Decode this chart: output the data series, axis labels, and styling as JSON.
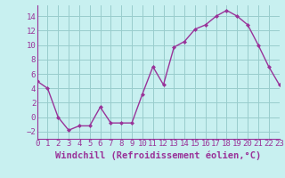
{
  "x": [
    0,
    1,
    2,
    3,
    4,
    5,
    6,
    7,
    8,
    9,
    10,
    11,
    12,
    13,
    14,
    15,
    16,
    17,
    18,
    19,
    20,
    21,
    22,
    23
  ],
  "y": [
    5,
    4,
    0,
    -1.8,
    -1.2,
    -1.2,
    1.4,
    -0.8,
    -0.8,
    -0.8,
    3.2,
    7,
    4.5,
    9.7,
    10.5,
    12.2,
    12.8,
    14.0,
    14.8,
    14.0,
    12.8,
    10.0,
    7.0,
    4.5
  ],
  "line_color": "#993399",
  "marker_color": "#993399",
  "bg_color": "#c8f0f0",
  "grid_color": "#99cccc",
  "xlabel": "Windchill (Refroidissement éolien,°C)",
  "ylim": [
    -3,
    15.5
  ],
  "xlim": [
    0,
    23
  ],
  "yticks": [
    -2,
    0,
    2,
    4,
    6,
    8,
    10,
    12,
    14
  ],
  "xticks": [
    0,
    1,
    2,
    3,
    4,
    5,
    6,
    7,
    8,
    9,
    10,
    11,
    12,
    13,
    14,
    15,
    16,
    17,
    18,
    19,
    20,
    21,
    22,
    23
  ],
  "tick_color": "#993399",
  "tick_fontsize": 6.5,
  "xlabel_fontsize": 7.5,
  "spine_color": "#993399"
}
